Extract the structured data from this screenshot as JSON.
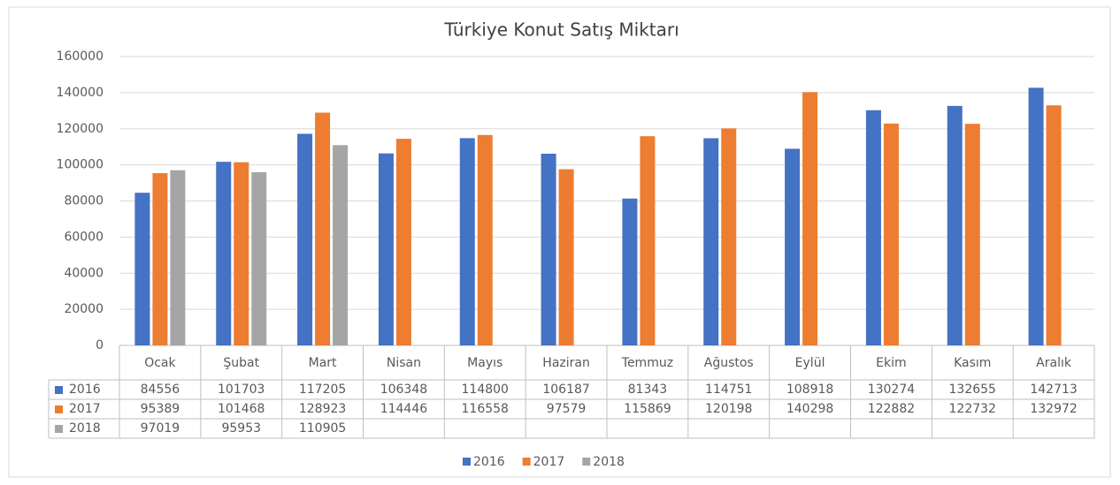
{
  "chart_data": {
    "type": "bar",
    "title": "Türkiye Konut Satış Miktarı",
    "categories": [
      "Ocak",
      "Şubat",
      "Mart",
      "Nisan",
      "Mayıs",
      "Haziran",
      "Temmuz",
      "Ağustos",
      "Eylül",
      "Ekim",
      "Kasım",
      "Aralık"
    ],
    "series": [
      {
        "name": "2016",
        "color": "#4472c4",
        "values": [
          84556,
          101703,
          117205,
          106348,
          114800,
          106187,
          81343,
          114751,
          108918,
          130274,
          132655,
          142713
        ]
      },
      {
        "name": "2017",
        "color": "#ed7d31",
        "values": [
          95389,
          101468,
          128923,
          114446,
          116558,
          97579,
          115869,
          120198,
          140298,
          122882,
          122732,
          132972
        ]
      },
      {
        "name": "2018",
        "color": "#a5a5a5",
        "values": [
          97019,
          95953,
          110905,
          null,
          null,
          null,
          null,
          null,
          null,
          null,
          null,
          null
        ]
      }
    ],
    "ylim": [
      0,
      160000
    ],
    "yticks": [
      0,
      20000,
      40000,
      60000,
      80000,
      100000,
      120000,
      140000,
      160000
    ],
    "grid": true,
    "legend": "bottom",
    "data_table": true
  }
}
